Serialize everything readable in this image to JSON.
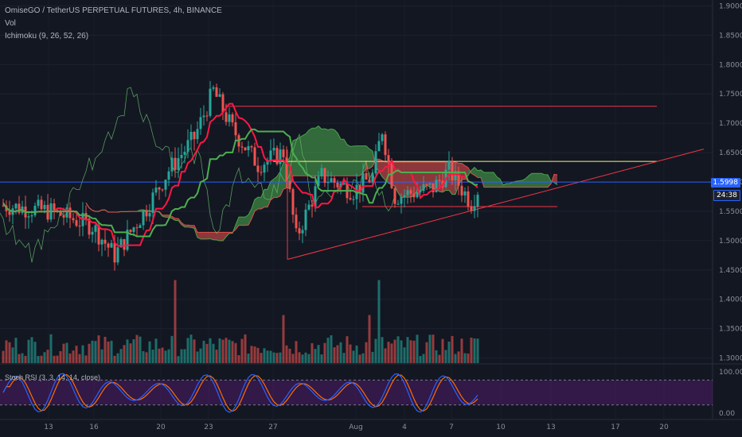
{
  "header": {
    "symbol_line": "OmiseGO / TetherUS PERPETUAL FUTURES, 4h, BINANCE",
    "vol_label": "Vol",
    "ichimoku_label": "Ichimoku (9, 26, 52, 26)",
    "stoch_label": "Stoch RSI (3, 3, 14, 14, close)"
  },
  "price_tag": "1.5998",
  "time_tag": "24:38",
  "colors": {
    "up": "#26a69a",
    "down": "#ef5350",
    "tenkan": "#ff1744",
    "kijun": "#4caf50",
    "cloud_up": "#4caf50",
    "cloud_down": "#ef5350",
    "trendline": "#f23645",
    "resistance_top": "#f23645",
    "resistance_mid": "#f5f57a",
    "price_line": "#2962ff",
    "stoch_k": "#2962ff",
    "stoch_d": "#ff6d00",
    "stoch_band": "#7b1fa2"
  },
  "chart_data": {
    "type": "candlestick",
    "price_axis": {
      "ylim": [
        1.29,
        1.91
      ],
      "ticks": [
        "1.9000",
        "1.8500",
        "1.8000",
        "1.7500",
        "1.7000",
        "1.6500",
        "1.6000",
        "1.5500",
        "1.5000",
        "1.4500",
        "1.4000",
        "1.3500",
        "1.3000"
      ],
      "tick_values": [
        1.9,
        1.85,
        1.8,
        1.75,
        1.7,
        1.65,
        1.6,
        1.55,
        1.5,
        1.45,
        1.4,
        1.35,
        1.3
      ]
    },
    "time_axis": {
      "labels": [
        "13",
        "16",
        "20",
        "23",
        "27",
        "Aug",
        "4",
        "7",
        "10",
        "13",
        "17",
        "20"
      ]
    },
    "levels": {
      "resistance_top": 1.729,
      "resistance_mid": 1.635,
      "support": 1.558,
      "current_price": 1.5998
    },
    "stoch_axis": {
      "ticks": [
        "100.00",
        "0.00"
      ],
      "upper_band": 80,
      "lower_band": 20
    }
  }
}
